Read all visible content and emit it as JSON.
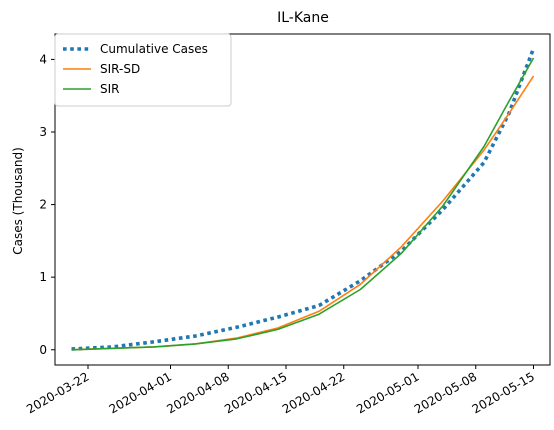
{
  "chart_data": {
    "type": "line",
    "title": "IL-Kane",
    "xlabel": "",
    "ylabel": "Cases (Thousand)",
    "x_type": "date",
    "xlim": [
      "2020-03-18",
      "2020-05-17"
    ],
    "ylim": [
      -0.21,
      4.35
    ],
    "x_ticks": [
      "2020-03-22",
      "2020-04-01",
      "2020-04-08",
      "2020-04-15",
      "2020-04-22",
      "2020-05-01",
      "2020-05-08",
      "2020-05-15"
    ],
    "y_ticks": [
      0,
      1,
      2,
      3,
      4
    ],
    "grid": false,
    "legend": {
      "placement": "top-left",
      "entries": [
        "Cumulative Cases",
        "SIR-SD",
        "SIR"
      ]
    },
    "series": [
      {
        "name": "Cumulative Cases",
        "color": "#1f77b4",
        "style": "dotted",
        "points": [
          [
            "2020-03-20",
            0.01
          ],
          [
            "2020-03-25",
            0.04
          ],
          [
            "2020-03-30",
            0.11
          ],
          [
            "2020-04-04",
            0.19
          ],
          [
            "2020-04-09",
            0.31
          ],
          [
            "2020-04-14",
            0.45
          ],
          [
            "2020-04-19",
            0.61
          ],
          [
            "2020-04-24",
            0.95
          ],
          [
            "2020-04-29",
            1.36
          ],
          [
            "2020-05-04",
            1.93
          ],
          [
            "2020-05-09",
            2.58
          ],
          [
            "2020-05-12",
            3.25
          ],
          [
            "2020-05-15",
            4.15
          ]
        ]
      },
      {
        "name": "SIR-SD",
        "color": "#ff7f0e",
        "style": "solid",
        "points": [
          [
            "2020-03-20",
            0.0
          ],
          [
            "2020-03-25",
            0.02
          ],
          [
            "2020-03-30",
            0.04
          ],
          [
            "2020-04-04",
            0.08
          ],
          [
            "2020-04-09",
            0.16
          ],
          [
            "2020-04-14",
            0.3
          ],
          [
            "2020-04-19",
            0.53
          ],
          [
            "2020-04-24",
            0.9
          ],
          [
            "2020-04-29",
            1.42
          ],
          [
            "2020-05-04",
            2.05
          ],
          [
            "2020-05-09",
            2.75
          ],
          [
            "2020-05-12",
            3.25
          ],
          [
            "2020-05-15",
            3.77
          ]
        ]
      },
      {
        "name": "SIR",
        "color": "#2ca02c",
        "style": "solid",
        "points": [
          [
            "2020-03-20",
            0.0
          ],
          [
            "2020-03-25",
            0.02
          ],
          [
            "2020-03-30",
            0.04
          ],
          [
            "2020-04-04",
            0.08
          ],
          [
            "2020-04-09",
            0.15
          ],
          [
            "2020-04-14",
            0.28
          ],
          [
            "2020-04-19",
            0.49
          ],
          [
            "2020-04-24",
            0.83
          ],
          [
            "2020-04-29",
            1.33
          ],
          [
            "2020-05-04",
            1.98
          ],
          [
            "2020-05-09",
            2.8
          ],
          [
            "2020-05-12",
            3.42
          ],
          [
            "2020-05-15",
            4.02
          ]
        ]
      }
    ]
  }
}
